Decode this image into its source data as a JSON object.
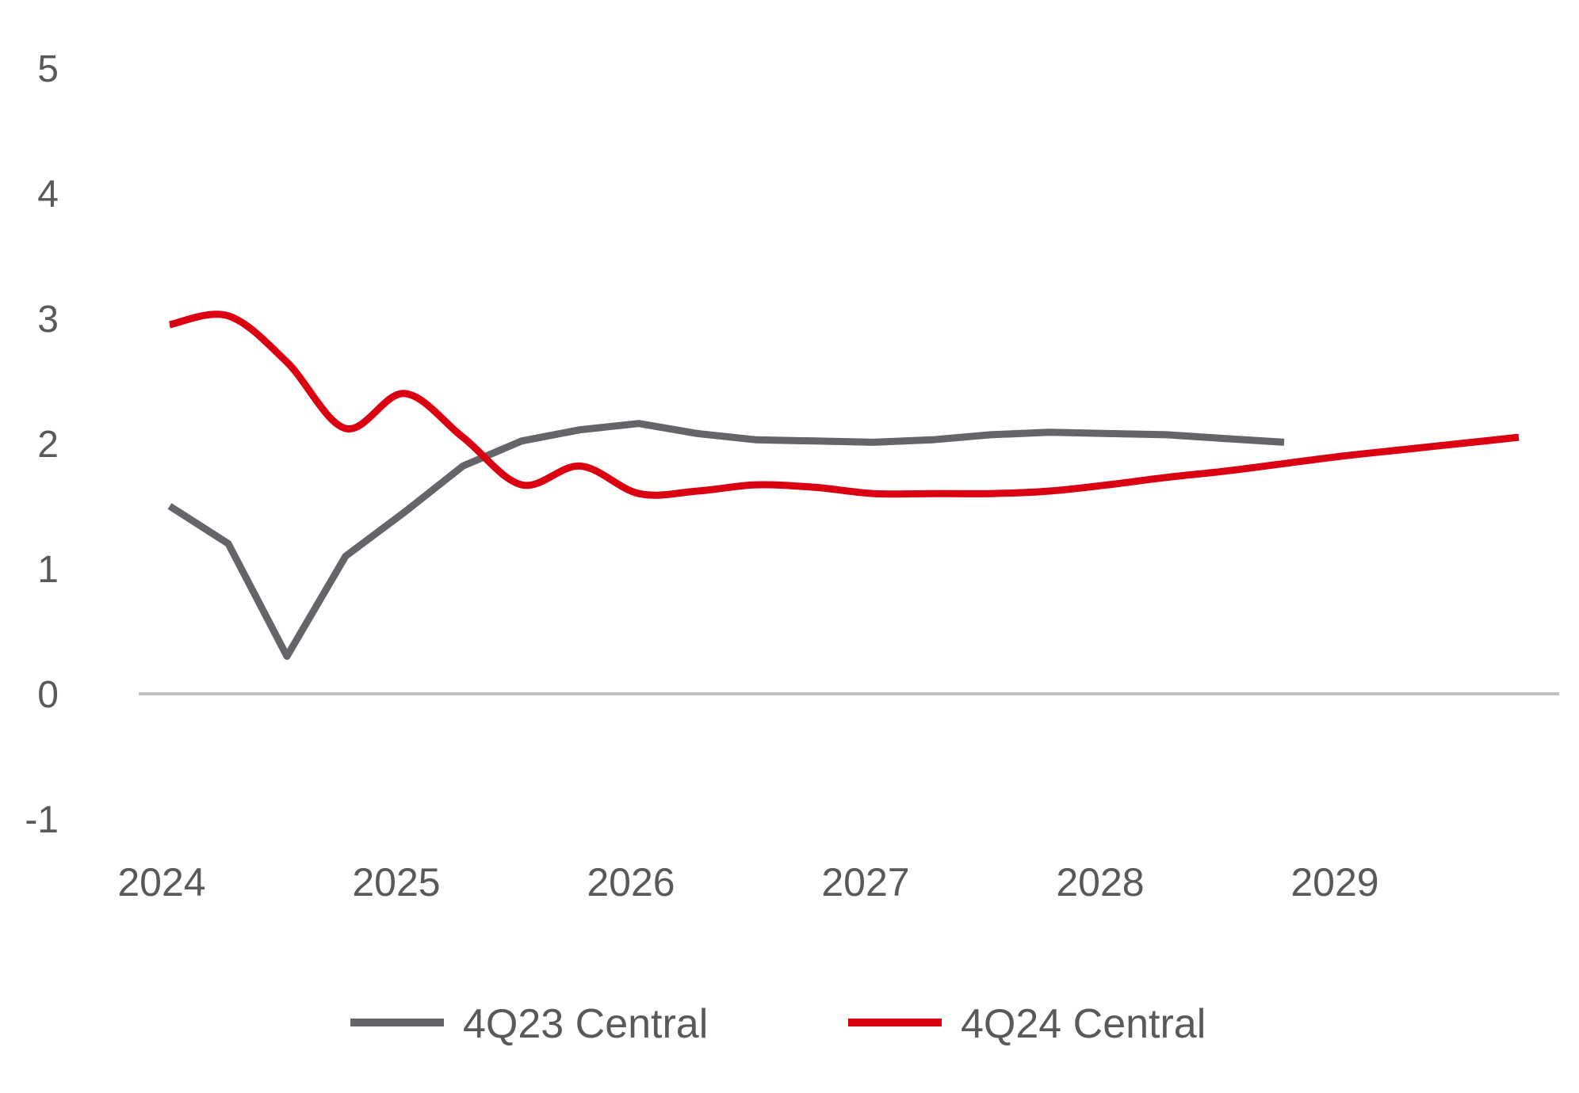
{
  "chart_data": {
    "type": "line",
    "title": "",
    "xlabel": "",
    "ylabel": "",
    "ylim": [
      -1,
      5
    ],
    "yticks": [
      -1,
      0,
      1,
      2,
      3,
      4,
      5
    ],
    "ytick_labels": [
      "-1",
      "0",
      "1",
      "2",
      "3",
      "4",
      "5"
    ],
    "xticks": [
      2024,
      2025,
      2026,
      2027,
      2028,
      2029
    ],
    "xtick_labels": [
      "2024",
      "2025",
      "2026",
      "2027",
      "2028",
      "2029"
    ],
    "grid": false,
    "zero_line": true,
    "legend_position": "bottom-center",
    "series": [
      {
        "name": "4Q23 Central",
        "color": "#646469",
        "smooth": false,
        "x": [
          2024.0,
          2024.25,
          2024.5,
          2024.75,
          2025.0,
          2025.25,
          2025.5,
          2025.75,
          2026.0,
          2026.25,
          2026.5,
          2026.75,
          2027.0,
          2027.25,
          2027.5,
          2027.75,
          2028.0,
          2028.25,
          2028.5,
          2028.75
        ],
        "y": [
          1.5,
          1.2,
          0.3,
          1.1,
          1.45,
          1.82,
          2.02,
          2.11,
          2.16,
          2.08,
          2.03,
          2.02,
          2.01,
          2.03,
          2.07,
          2.09,
          2.08,
          2.07,
          2.04,
          2.01
        ]
      },
      {
        "name": "4Q24 Central",
        "color": "#db0011",
        "smooth": true,
        "x": [
          2024.0,
          2024.25,
          2024.5,
          2024.75,
          2025.0,
          2025.25,
          2025.5,
          2025.75,
          2026.0,
          2026.25,
          2026.5,
          2026.75,
          2027.0,
          2027.25,
          2027.5,
          2027.75,
          2028.0,
          2028.25,
          2028.5,
          2028.75,
          2029.0,
          2029.25,
          2029.5,
          2029.75
        ],
        "y": [
          2.95,
          3.02,
          2.65,
          2.12,
          2.4,
          2.05,
          1.67,
          1.82,
          1.6,
          1.62,
          1.67,
          1.65,
          1.6,
          1.6,
          1.6,
          1.62,
          1.67,
          1.73,
          1.78,
          1.84,
          1.9,
          1.95,
          2.0,
          2.05
        ]
      }
    ]
  }
}
